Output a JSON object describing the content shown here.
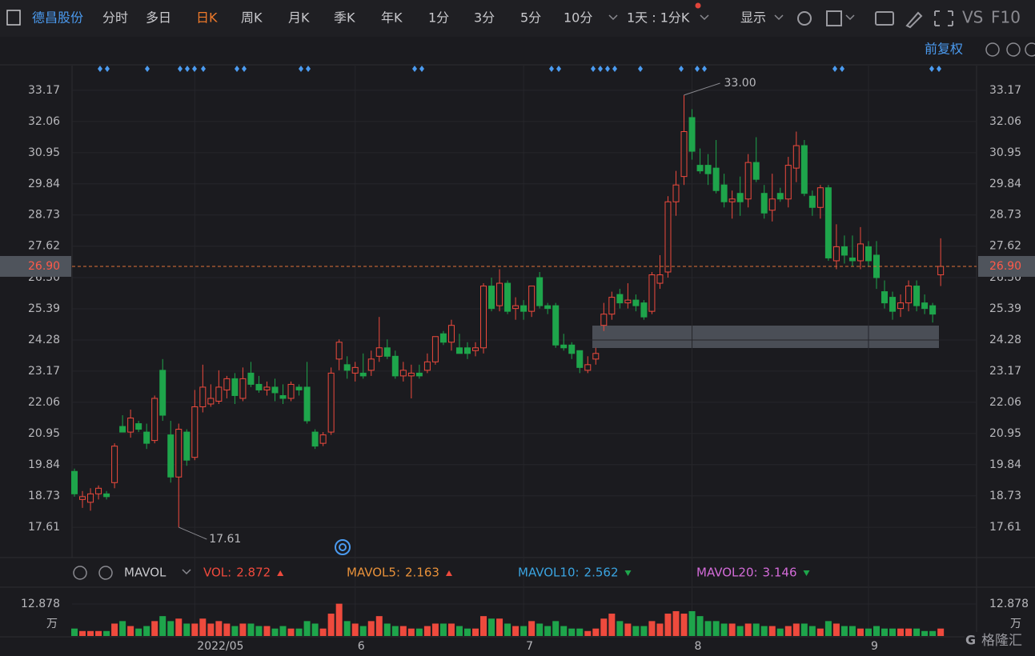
{
  "toolbar": {
    "stock": "德昌股份",
    "tabs": [
      "分时",
      "多日",
      "日K",
      "周K",
      "月K",
      "季K",
      "年K",
      "1分",
      "3分",
      "5分",
      "10分"
    ],
    "active": 2,
    "period": "1天 : 1分K",
    "display": "显示",
    "vs": "VS",
    "f10": "F10",
    "adjust": "前复权"
  },
  "chart_data": {
    "type": "candlestick",
    "up_color": "#ee4a3d",
    "down_color": "#1ea54b",
    "up_hollow": true,
    "grid": true,
    "ylim": [
      16.53,
      34.05
    ],
    "yticks": [
      33.17,
      32.06,
      30.95,
      29.84,
      28.73,
      27.62,
      {
        "value": 26.5,
        "label": "26.50"
      },
      25.39,
      24.28,
      23.17,
      22.06,
      20.95,
      19.84,
      18.73,
      17.61
    ],
    "last_price": {
      "value": 26.9,
      "label": "26.90"
    },
    "high_label": {
      "value": 33,
      "label": "33.00"
    },
    "low_label": 17.61,
    "categories": [
      null,
      null,
      null,
      null,
      null,
      null,
      null,
      null,
      null,
      null,
      null,
      null,
      null,
      null,
      null,
      "2022/05",
      null,
      null,
      null,
      null,
      null,
      null,
      null,
      null,
      null,
      null,
      null,
      null,
      null,
      null,
      null,
      null,
      null,
      null,
      null,
      "6",
      null,
      null,
      null,
      null,
      null,
      null,
      null,
      null,
      null,
      null,
      null,
      null,
      null,
      null,
      null,
      null,
      null,
      null,
      null,
      null,
      "7",
      null,
      null,
      null,
      null,
      null,
      null,
      null,
      null,
      null,
      null,
      null,
      null,
      null,
      null,
      null,
      null,
      null,
      null,
      null,
      null,
      "8",
      null,
      null,
      null,
      null,
      null,
      null,
      null,
      null,
      null,
      null,
      null,
      null,
      null,
      null,
      null,
      null,
      null,
      null,
      null,
      null,
      null,
      "9",
      null,
      null,
      null,
      null,
      null,
      null,
      null,
      null
    ],
    "ohlc": [
      [
        19.6,
        19.7,
        18.7,
        18.8
      ],
      [
        18.6,
        18.9,
        18.3,
        18.7
      ],
      [
        18.5,
        19,
        18.2,
        18.8
      ],
      [
        18.8,
        19.1,
        18.6,
        19
      ],
      [
        18.8,
        18.9,
        18.6,
        18.7
      ],
      [
        19.2,
        20.6,
        19,
        20.5
      ],
      [
        21.2,
        21.6,
        21,
        21
      ],
      [
        21,
        21.8,
        20.8,
        21.5
      ],
      [
        21.3,
        21.4,
        21,
        21.1
      ],
      [
        21,
        21.3,
        20.4,
        20.6
      ],
      [
        20.7,
        22.3,
        20.6,
        22.2
      ],
      [
        23.2,
        23.6,
        21.4,
        21.6
      ],
      [
        20.9,
        21.4,
        19.2,
        19.4
      ],
      [
        19.4,
        21.3,
        17.61,
        21.1
      ],
      [
        21,
        21.1,
        19.8,
        20
      ],
      [
        20.1,
        22.5,
        20,
        21.9
      ],
      [
        21.9,
        23.4,
        21.7,
        22.6
      ],
      [
        22,
        22.7,
        21.9,
        22.2
      ],
      [
        22.1,
        23.2,
        22,
        22.6
      ],
      [
        22.5,
        23,
        22.2,
        22.9
      ],
      [
        22.9,
        23.1,
        22,
        22.3
      ],
      [
        22.2,
        23.3,
        22.1,
        22.9
      ],
      [
        23.1,
        23.5,
        22.6,
        22.7
      ],
      [
        22.7,
        23,
        22.4,
        22.5
      ],
      [
        22.5,
        22.8,
        22.3,
        22.6
      ],
      [
        22.6,
        22.9,
        22.1,
        22.4
      ],
      [
        22.3,
        22.7,
        22,
        22.2
      ],
      [
        22.2,
        22.8,
        22.1,
        22.7
      ],
      [
        22.6,
        22.7,
        22.3,
        22.5
      ],
      [
        22.6,
        23.5,
        21.3,
        21.4
      ],
      [
        21,
        21.1,
        20.4,
        20.5
      ],
      [
        20.6,
        21,
        20.5,
        20.9
      ],
      [
        21,
        23.3,
        20.9,
        23.1
      ],
      [
        23.6,
        24.3,
        23.2,
        24.2
      ],
      [
        23.4,
        23.7,
        22.9,
        23.2
      ],
      [
        23.1,
        23.5,
        22.8,
        23.3
      ],
      [
        23.1,
        23.8,
        22.9,
        23
      ],
      [
        23.2,
        23.9,
        23,
        23.6
      ],
      [
        23.7,
        25.1,
        23.5,
        24
      ],
      [
        24,
        24.3,
        23.6,
        23.7
      ],
      [
        23.7,
        23.9,
        22.9,
        23
      ],
      [
        23,
        23.5,
        22.8,
        23.2
      ],
      [
        23,
        23.4,
        22.2,
        23.1
      ],
      [
        23.1,
        23.4,
        22.9,
        23
      ],
      [
        23.2,
        23.8,
        23.1,
        23.5
      ],
      [
        23.5,
        24.4,
        23.4,
        24.4
      ],
      [
        24.5,
        24.6,
        24.1,
        24.2
      ],
      [
        24.2,
        25,
        23.9,
        24.8
      ],
      [
        24,
        24.5,
        23.8,
        23.8
      ],
      [
        24,
        24.2,
        23.6,
        23.8
      ],
      [
        23.9,
        24.2,
        23.7,
        24
      ],
      [
        24,
        26.3,
        23.8,
        26.2
      ],
      [
        26.2,
        26.5,
        25.3,
        25.4
      ],
      [
        25.5,
        26.8,
        25.3,
        26.3
      ],
      [
        26.3,
        26.4,
        25.2,
        25.3
      ],
      [
        25.4,
        25.8,
        25,
        25.5
      ],
      [
        25.5,
        25.7,
        25,
        25.3
      ],
      [
        25.3,
        26.2,
        25.1,
        26.2
      ],
      [
        26.5,
        26.7,
        25.4,
        25.5
      ],
      [
        25.5,
        25.6,
        25.2,
        25.4
      ],
      [
        25.5,
        25.6,
        24,
        24.1
      ],
      [
        24.1,
        24.5,
        23.9,
        24
      ],
      [
        24.1,
        24.2,
        23.6,
        23.8
      ],
      [
        23.9,
        23.9,
        23.1,
        23.3
      ],
      [
        23.2,
        23.7,
        23.1,
        23.4
      ],
      [
        23.6,
        24,
        23.4,
        23.8
      ],
      [
        24.8,
        25.6,
        24.6,
        25.2
      ],
      [
        25.2,
        26,
        25,
        25.8
      ],
      [
        25.9,
        26.1,
        25.4,
        25.6
      ],
      [
        25.6,
        26.3,
        25.4,
        25.7
      ],
      [
        25.7,
        25.9,
        25.3,
        25.5
      ],
      [
        25.6,
        25.7,
        25,
        25.1
      ],
      [
        25.3,
        26.7,
        25.2,
        26.6
      ],
      [
        26.3,
        27.3,
        26.1,
        26.6
      ],
      [
        26.7,
        29.4,
        26.5,
        29.2
      ],
      [
        29.2,
        30.3,
        28.7,
        29.8
      ],
      [
        30.1,
        33,
        29.8,
        31.7
      ],
      [
        32.2,
        32.5,
        30.7,
        31
      ],
      [
        30.5,
        31.1,
        30.2,
        30.3
      ],
      [
        30.5,
        30.9,
        29.8,
        30.2
      ],
      [
        30.4,
        31.4,
        29.5,
        29.6
      ],
      [
        29.8,
        30.2,
        29,
        29.2
      ],
      [
        29.2,
        29.6,
        28.6,
        29.3
      ],
      [
        29.5,
        30.1,
        28.7,
        29.2
      ],
      [
        29.3,
        30.9,
        29,
        30.6
      ],
      [
        30.6,
        31.5,
        29.9,
        30
      ],
      [
        29.5,
        29.8,
        28.6,
        28.8
      ],
      [
        28.9,
        30.2,
        28.5,
        29.3
      ],
      [
        29.5,
        29.7,
        29.2,
        29.3
      ],
      [
        29.3,
        30.8,
        29,
        30.5
      ],
      [
        30.4,
        31.7,
        29.9,
        31.2
      ],
      [
        31.2,
        31.4,
        29.4,
        29.5
      ],
      [
        29.4,
        29.6,
        28.7,
        29
      ],
      [
        29,
        29.8,
        28.6,
        29.7
      ],
      [
        29.7,
        29.8,
        27.1,
        27.2
      ],
      [
        27.1,
        28.4,
        26.8,
        27.6
      ],
      [
        27.6,
        28,
        27,
        27.3
      ],
      [
        27.2,
        28,
        26.9,
        27.1
      ],
      [
        27.1,
        28.3,
        26.8,
        27.7
      ],
      [
        27.6,
        27.8,
        26.9,
        27.1
      ],
      [
        27.3,
        27.8,
        26.1,
        26.5
      ],
      [
        26,
        26.4,
        25.4,
        25.6
      ],
      [
        25.8,
        26,
        25,
        25.3
      ],
      [
        25.4,
        25.9,
        25.1,
        25.6
      ],
      [
        25.6,
        26.4,
        25.3,
        26.2
      ],
      [
        26.2,
        26.4,
        25.3,
        25.5
      ],
      [
        25.6,
        25.9,
        25.2,
        25.4
      ],
      [
        25.5,
        25.6,
        24.9,
        25.2
      ],
      [
        26.6,
        27.9,
        26.2,
        26.9
      ]
    ],
    "volume": {
      "ylim": [
        0,
        12.878
      ],
      "yticks": [
        12.878
      ],
      "unit": "万",
      "values": [
        3,
        2,
        2,
        2,
        2,
        5,
        6,
        4,
        3,
        4,
        6,
        8,
        6,
        7,
        5,
        5,
        7,
        5,
        6,
        5,
        4,
        5,
        5,
        4,
        4,
        3,
        4,
        3,
        3,
        6,
        5,
        3,
        9,
        13,
        6,
        5,
        4,
        6,
        8,
        5,
        4,
        4,
        3,
        3,
        4,
        5,
        5,
        5,
        4,
        3,
        3,
        8,
        7,
        7,
        5,
        4,
        4,
        6,
        5,
        4,
        6,
        4,
        3,
        3,
        2,
        3,
        7,
        9,
        6,
        5,
        4,
        4,
        6,
        5,
        9,
        10,
        9,
        10,
        8,
        6,
        6,
        5,
        5,
        4,
        5,
        5,
        4,
        4,
        3,
        4,
        5,
        5,
        4,
        3,
        6,
        5,
        4,
        4,
        3,
        3,
        4,
        3,
        3,
        3,
        3,
        3,
        2,
        2,
        3
      ]
    },
    "indicator": "MAVOL",
    "indicators": [
      {
        "name": "VOL:",
        "value": 2.872,
        "color": "#ef4a3d"
      },
      {
        "name": "MAVOL5:",
        "value": 2.163,
        "color": "#e8913a"
      },
      {
        "name": "MAVOL10:",
        "value": 2.562,
        "color": "#3aa3e0"
      },
      {
        "name": "MAVOL20:",
        "value": 3.146,
        "color": "#d36bd8"
      }
    ]
  },
  "watermark": "格隆汇"
}
